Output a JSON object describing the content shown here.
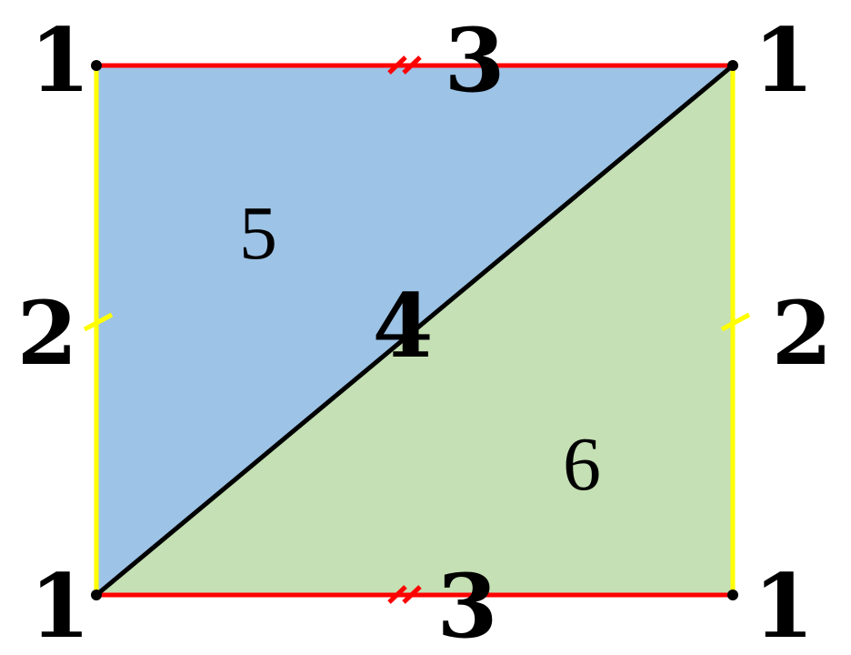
{
  "colors": {
    "upper_triangle_fill": "#9dc3e6",
    "lower_triangle_fill": "#c5e0b4",
    "horizontal_edges": "#ff0000",
    "vertical_edges": "#ffff00",
    "diagonal_and_vertices": "#000000"
  },
  "vertices": {
    "top_left": "1",
    "top_right": "1",
    "bottom_left": "1",
    "bottom_right": "1"
  },
  "edges": {
    "top": "3",
    "bottom": "3",
    "left": "2",
    "right": "2",
    "diagonal": "4"
  },
  "faces": {
    "upper": "5",
    "lower": "6"
  }
}
